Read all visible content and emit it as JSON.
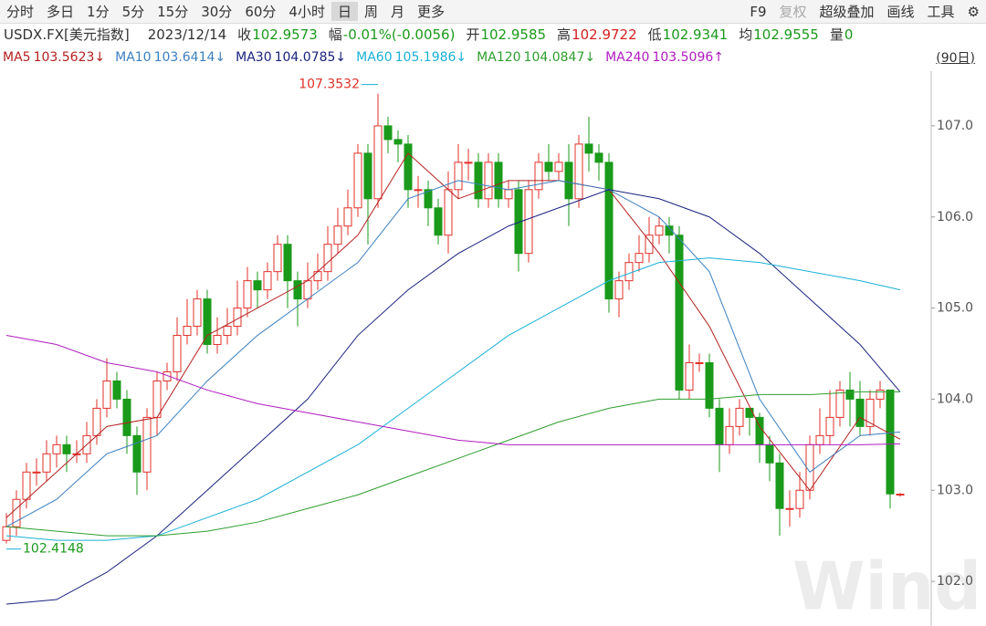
{
  "toolbar": {
    "left": [
      "分时",
      "多日",
      "1分",
      "5分",
      "15分",
      "30分",
      "60分",
      "4小时",
      "日",
      "周",
      "月",
      "更多"
    ],
    "selected": "日",
    "right": [
      "F9",
      "复权",
      "超级叠加",
      "画线",
      "工具",
      "⚙"
    ],
    "disabled": "复权"
  },
  "info": {
    "symbol": "USDX.FX[美元指数]",
    "date": "2023/12/14",
    "fields": [
      {
        "label": "收",
        "value": "102.9573",
        "color": "#1a9a1a"
      },
      {
        "label": "幅",
        "value": "-0.01%(-0.0056)",
        "color": "#1a9a1a"
      },
      {
        "label": "开",
        "value": "102.9585",
        "color": "#1a9a1a"
      },
      {
        "label": "高",
        "value": "102.9722",
        "color": "#d42020"
      },
      {
        "label": "低",
        "value": "102.9341",
        "color": "#1a9a1a"
      },
      {
        "label": "均",
        "value": "102.9555",
        "color": "#1a9a1a"
      },
      {
        "label": "量",
        "value": "0",
        "color": "#1a9a1a"
      }
    ]
  },
  "period": "(90日)",
  "watermark": "Wind",
  "chart_data": {
    "type": "candlestick",
    "up_color": "#e0302a",
    "down_color": "#1a9a1a",
    "ylim": [
      101.51,
      107.43
    ],
    "yticks": [
      {
        "value": 102,
        "label": "102.0"
      },
      {
        "value": 103,
        "label": "103.0"
      },
      {
        "value": 104,
        "label": "104.0"
      },
      {
        "value": 105,
        "label": "105.0"
      },
      {
        "value": 106,
        "label": "106.0"
      },
      {
        "value": 107,
        "label": "107.0"
      }
    ],
    "open": [
      102.45,
      102.6,
      102.9,
      103.2,
      103.2,
      103.4,
      103.5,
      103.4,
      103.4,
      103.6,
      103.9,
      104.2,
      104.0,
      103.6,
      103.2,
      103.8,
      104.2,
      104.3,
      104.7,
      104.8,
      105.1,
      104.6,
      104.7,
      104.8,
      105.0,
      105.3,
      105.2,
      105.4,
      105.7,
      105.3,
      105.1,
      105.3,
      105.4,
      105.7,
      105.9,
      106.1,
      106.7,
      106.2,
      107.0,
      106.85,
      106.8,
      106.3,
      106.3,
      106.1,
      105.8,
      106.3,
      106.6,
      106.6,
      106.2,
      106.6,
      106.2,
      106.3,
      105.6,
      106.3,
      106.6,
      106.5,
      106.6,
      106.2,
      106.8,
      106.7,
      106.6,
      105.1,
      105.3,
      105.5,
      105.6,
      105.8,
      105.9,
      105.8,
      104.1,
      104.4,
      104.4,
      103.9,
      103.5,
      103.7,
      103.9,
      103.8,
      103.5,
      103.3,
      102.8,
      102.8,
      103.0,
      103.5,
      103.6,
      103.8,
      104.1,
      104.0,
      103.7,
      104.0,
      104.1,
      102.95
    ],
    "high": [
      102.75,
      103.0,
      103.3,
      103.35,
      103.55,
      103.6,
      103.6,
      103.55,
      103.75,
      104.0,
      104.45,
      104.3,
      104.1,
      103.7,
      103.9,
      104.3,
      104.4,
      104.9,
      105.1,
      105.2,
      105.2,
      104.9,
      105.0,
      105.3,
      105.45,
      105.4,
      105.5,
      105.8,
      105.8,
      105.4,
      105.5,
      105.6,
      105.9,
      106.1,
      106.3,
      106.8,
      106.8,
      107.3532,
      107.1,
      106.95,
      106.9,
      106.45,
      106.4,
      106.2,
      106.5,
      106.8,
      106.75,
      106.7,
      106.7,
      106.7,
      106.4,
      106.4,
      106.4,
      106.7,
      106.8,
      106.7,
      106.8,
      106.9,
      107.1,
      106.8,
      106.7,
      105.4,
      105.6,
      105.8,
      106.0,
      106.0,
      106.0,
      105.9,
      104.6,
      104.5,
      104.5,
      104.0,
      103.9,
      104.0,
      103.9,
      103.85,
      103.6,
      103.4,
      103.0,
      103.2,
      103.6,
      103.9,
      104.1,
      104.2,
      104.3,
      104.2,
      104.1,
      104.2,
      104.1,
      102.97
    ],
    "low": [
      102.4148,
      102.5,
      102.8,
      103.05,
      103.1,
      103.25,
      103.2,
      103.3,
      103.3,
      103.5,
      103.8,
      103.9,
      103.4,
      102.95,
      103.0,
      103.6,
      104.1,
      104.2,
      104.6,
      104.7,
      104.5,
      104.5,
      104.6,
      104.7,
      104.9,
      105.0,
      105.1,
      105.3,
      105.0,
      104.8,
      105.0,
      105.2,
      105.3,
      105.6,
      105.8,
      106.0,
      105.7,
      106.1,
      106.7,
      106.6,
      106.1,
      106.1,
      105.9,
      105.7,
      105.6,
      106.2,
      106.4,
      106.1,
      106.1,
      106.1,
      106.1,
      105.4,
      105.5,
      106.2,
      106.4,
      106.4,
      105.9,
      106.1,
      106.5,
      106.4,
      104.95,
      104.9,
      105.2,
      105.4,
      105.5,
      105.7,
      105.6,
      104.0,
      104.0,
      104.3,
      103.8,
      103.2,
      103.4,
      103.6,
      103.6,
      103.3,
      103.1,
      102.5,
      102.6,
      102.7,
      102.9,
      103.4,
      103.5,
      103.7,
      103.7,
      103.6,
      103.6,
      103.9,
      102.8,
      102.93
    ],
    "close": [
      102.6,
      102.9,
      103.2,
      103.2,
      103.4,
      103.5,
      103.4,
      103.4,
      103.6,
      103.9,
      104.2,
      104.0,
      103.6,
      103.2,
      103.8,
      104.2,
      104.3,
      104.7,
      104.8,
      105.1,
      104.6,
      104.7,
      104.8,
      105.0,
      105.3,
      105.2,
      105.4,
      105.7,
      105.3,
      105.1,
      105.3,
      105.4,
      105.7,
      105.9,
      106.1,
      106.7,
      106.2,
      107.0,
      106.85,
      106.8,
      106.3,
      106.3,
      106.1,
      105.8,
      106.3,
      106.6,
      106.6,
      106.2,
      106.6,
      106.2,
      106.3,
      105.6,
      106.3,
      106.6,
      106.5,
      106.6,
      106.2,
      106.8,
      106.7,
      106.6,
      105.1,
      105.3,
      105.5,
      105.6,
      105.8,
      105.9,
      105.8,
      104.1,
      104.4,
      104.4,
      103.9,
      103.5,
      103.7,
      103.9,
      103.8,
      103.5,
      103.3,
      102.8,
      102.8,
      103.0,
      103.5,
      103.6,
      103.8,
      104.1,
      104.0,
      103.7,
      104.0,
      104.1,
      102.96,
      102.9573
    ],
    "series": [
      {
        "name": "MA5",
        "label": "103.5623↓",
        "color": "#b52020",
        "x": [
          0,
          5,
          10,
          15,
          20,
          25,
          30,
          35,
          40,
          45,
          50,
          55,
          60,
          65,
          70,
          75,
          80,
          85,
          89
        ],
        "values": [
          102.7,
          103.2,
          103.7,
          103.8,
          104.7,
          105.0,
          105.3,
          105.8,
          106.7,
          106.2,
          106.4,
          106.4,
          106.3,
          105.6,
          104.8,
          103.7,
          103.0,
          103.8,
          103.56
        ]
      },
      {
        "name": "MA10",
        "label": "103.6414↓",
        "color": "#3b7fc0",
        "x": [
          0,
          5,
          10,
          15,
          20,
          25,
          30,
          35,
          40,
          45,
          50,
          55,
          60,
          65,
          70,
          75,
          80,
          85,
          89
        ],
        "values": [
          102.6,
          102.9,
          103.4,
          103.6,
          104.2,
          104.7,
          105.1,
          105.5,
          106.2,
          106.4,
          106.3,
          106.4,
          106.3,
          106.0,
          105.4,
          104.0,
          103.2,
          103.6,
          103.64
        ]
      },
      {
        "name": "MA30",
        "label": "104.0785↓",
        "color": "#1a237e",
        "x": [
          0,
          5,
          10,
          15,
          20,
          25,
          30,
          35,
          40,
          45,
          50,
          55,
          60,
          65,
          70,
          75,
          80,
          85,
          89
        ],
        "values": [
          101.75,
          101.8,
          102.1,
          102.5,
          103.0,
          103.5,
          104.0,
          104.7,
          105.2,
          105.6,
          105.9,
          106.1,
          106.3,
          106.2,
          106.0,
          105.6,
          105.1,
          104.6,
          104.08
        ]
      },
      {
        "name": "MA60",
        "label": "105.1986↓",
        "color": "#1ab0d8",
        "x": [
          0,
          5,
          10,
          15,
          20,
          25,
          30,
          35,
          40,
          45,
          50,
          55,
          60,
          65,
          70,
          75,
          80,
          85,
          89
        ],
        "values": [
          102.5,
          102.45,
          102.45,
          102.5,
          102.7,
          102.9,
          103.2,
          103.5,
          103.9,
          104.3,
          104.7,
          105.0,
          105.3,
          105.5,
          105.55,
          105.5,
          105.4,
          105.3,
          105.2
        ]
      },
      {
        "name": "MA120",
        "label": "104.0847↓",
        "color": "#2e9e2e",
        "x": [
          0,
          5,
          10,
          15,
          20,
          25,
          30,
          35,
          40,
          45,
          50,
          55,
          60,
          65,
          70,
          75,
          80,
          85,
          89
        ],
        "values": [
          102.6,
          102.55,
          102.5,
          102.5,
          102.55,
          102.65,
          102.8,
          102.95,
          103.15,
          103.35,
          103.55,
          103.75,
          103.9,
          104.0,
          104.0,
          104.05,
          104.05,
          104.08,
          104.08
        ]
      },
      {
        "name": "MA240",
        "label": "103.5096↑",
        "color": "#b01cc0",
        "x": [
          0,
          5,
          10,
          15,
          20,
          25,
          30,
          35,
          40,
          45,
          50,
          55,
          60,
          65,
          70,
          75,
          80,
          85,
          89
        ],
        "values": [
          104.7,
          104.6,
          104.4,
          104.3,
          104.1,
          103.95,
          103.85,
          103.75,
          103.65,
          103.55,
          103.5,
          103.5,
          103.5,
          103.5,
          103.5,
          103.5,
          103.5,
          103.5,
          103.51
        ]
      }
    ]
  }
}
